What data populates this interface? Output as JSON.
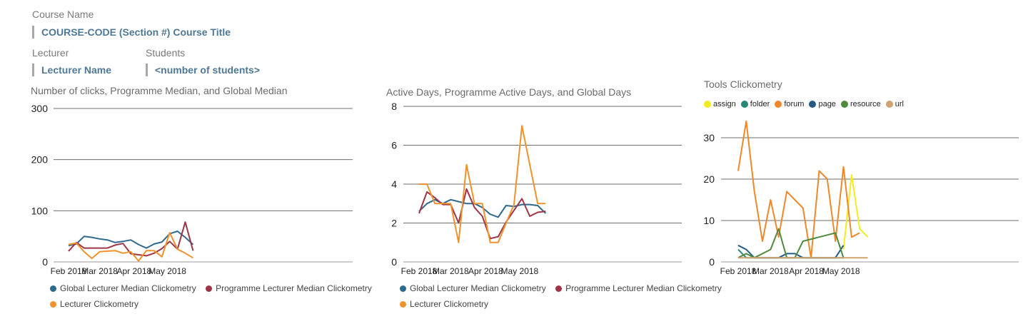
{
  "header": {
    "course_label": "Course Name",
    "course_value": "COURSE-CODE (Section #) Course Title",
    "lecturer_label": "Lecturer",
    "lecturer_value": "Lecturer Name",
    "students_label": "Students",
    "students_value": "<number of students>"
  },
  "colors": {
    "global": "#2e6a8e",
    "programme": "#9e3546",
    "lecturer": "#f0922c",
    "assign": "#f4ec1c",
    "folder": "#25897a",
    "forum": "#f0882a",
    "page": "#245a86",
    "resource": "#4f8a3f",
    "url": "#cfa26e"
  },
  "chart_data": [
    {
      "type": "line",
      "title": "Number of clicks, Programme Median, and Global Median",
      "x_ticks": [
        "Feb 2018",
        "Mar 2018",
        "Apr 2018",
        "May 2018"
      ],
      "x": [
        "2018-02-01",
        "2018-02-08",
        "2018-02-15",
        "2018-02-22",
        "2018-03-01",
        "2018-03-08",
        "2018-03-15",
        "2018-03-22",
        "2018-03-29",
        "2018-04-05",
        "2018-04-12",
        "2018-04-19",
        "2018-04-26",
        "2018-05-03",
        "2018-05-10",
        "2018-05-17",
        "2018-05-24"
      ],
      "ylim": [
        0,
        300
      ],
      "yticks": [
        0,
        100,
        200,
        300
      ],
      "grid": true,
      "legend": "bottom",
      "series": [
        {
          "name": "Global Lecturer Median Clickometry",
          "color_key": "global",
          "values": [
            32,
            35,
            50,
            48,
            45,
            43,
            38,
            40,
            43,
            34,
            27,
            35,
            39,
            55,
            60,
            48,
            34
          ]
        },
        {
          "name": "Programme Lecturer Median Clickometry",
          "color_key": "programme",
          "values": [
            21,
            38,
            27,
            27,
            27,
            27,
            33,
            36,
            16,
            14,
            12,
            17,
            26,
            40,
            25,
            78,
            22
          ]
        },
        {
          "name": "Lecturer Clickometry",
          "color_key": "lecturer",
          "values": [
            34,
            37,
            20,
            7,
            20,
            21,
            22,
            17,
            20,
            2,
            22,
            22,
            10,
            57,
            25,
            17,
            8
          ]
        }
      ]
    },
    {
      "type": "line",
      "title": "Active Days, Programme Active Days, and Global Days",
      "x_ticks": [
        "Feb 2018",
        "Mar 2018",
        "Apr 2018",
        "May 2018"
      ],
      "x": [
        "2018-02-01",
        "2018-02-08",
        "2018-02-15",
        "2018-02-22",
        "2018-03-01",
        "2018-03-08",
        "2018-03-15",
        "2018-03-22",
        "2018-03-29",
        "2018-04-05",
        "2018-04-12",
        "2018-04-19",
        "2018-04-26",
        "2018-05-03",
        "2018-05-10",
        "2018-05-17",
        "2018-05-24"
      ],
      "ylim": [
        0,
        8
      ],
      "yticks": [
        0,
        2,
        4,
        6,
        8
      ],
      "grid": true,
      "legend": "bottom",
      "series": [
        {
          "name": "Global Lecturer Median Clickometry",
          "color_key": "global",
          "values": [
            2.6,
            3.0,
            3.2,
            3.0,
            3.2,
            3.1,
            3.0,
            3.0,
            2.8,
            2.45,
            2.3,
            2.9,
            2.85,
            2.95,
            2.95,
            2.9,
            2.5
          ]
        },
        {
          "name": "Programme Lecturer Median Clickometry",
          "color_key": "programme",
          "values": [
            2.5,
            3.6,
            3.3,
            2.95,
            2.95,
            2.0,
            3.75,
            2.8,
            2.35,
            1.2,
            1.3,
            2.05,
            2.65,
            3.25,
            2.35,
            2.55,
            2.6
          ]
        },
        {
          "name": "Lecturer Clickometry",
          "color_key": "lecturer",
          "values": [
            4.0,
            4.0,
            3.0,
            3.0,
            3.0,
            1.0,
            5.0,
            3.0,
            3.0,
            1.0,
            1.0,
            2.0,
            2.95,
            7.0,
            5.0,
            3.0,
            3.0
          ]
        }
      ]
    },
    {
      "type": "line",
      "title": "Tools Clickometry",
      "x_ticks": [
        "Feb 2018",
        "Mar 2018",
        "Apr 2018",
        "May 2018"
      ],
      "x": [
        "2018-02-01",
        "2018-02-08",
        "2018-02-15",
        "2018-02-22",
        "2018-03-01",
        "2018-03-08",
        "2018-03-15",
        "2018-03-22",
        "2018-03-29",
        "2018-04-05",
        "2018-04-12",
        "2018-04-19",
        "2018-04-26",
        "2018-05-03",
        "2018-05-10",
        "2018-05-17",
        "2018-05-24"
      ],
      "ylim": [
        0,
        35
      ],
      "yticks": [
        0,
        10,
        20,
        30
      ],
      "grid": true,
      "legend": "top",
      "series": [
        {
          "name": "assign",
          "color_key": "assign",
          "values": [
            null,
            null,
            null,
            null,
            null,
            null,
            null,
            null,
            null,
            null,
            null,
            null,
            null,
            3,
            21,
            8,
            6
          ]
        },
        {
          "name": "folder",
          "color_key": "folder",
          "values": [
            3,
            1,
            1,
            1,
            1,
            1,
            1,
            1,
            1,
            1,
            1,
            1,
            1,
            1,
            null,
            null,
            null
          ]
        },
        {
          "name": "forum",
          "color_key": "forum",
          "values": [
            22,
            34,
            17,
            5,
            15,
            6,
            17,
            15,
            13,
            1,
            22,
            20,
            5,
            23,
            6,
            7,
            null
          ]
        },
        {
          "name": "page",
          "color_key": "page",
          "values": [
            4,
            3,
            1,
            1,
            1,
            1,
            2,
            2,
            1,
            1,
            1,
            1,
            1,
            4,
            null,
            null,
            null
          ]
        },
        {
          "name": "resource",
          "color_key": "resource",
          "values": [
            1,
            2,
            1,
            2,
            3,
            8,
            1,
            1,
            5,
            5.5,
            6,
            6.5,
            7,
            1,
            null,
            null,
            null
          ]
        },
        {
          "name": "url",
          "color_key": "url",
          "values": [
            1,
            1,
            1,
            1,
            1,
            1,
            1,
            1,
            1,
            1,
            1,
            1,
            1,
            1,
            1,
            1,
            1
          ]
        }
      ]
    }
  ]
}
